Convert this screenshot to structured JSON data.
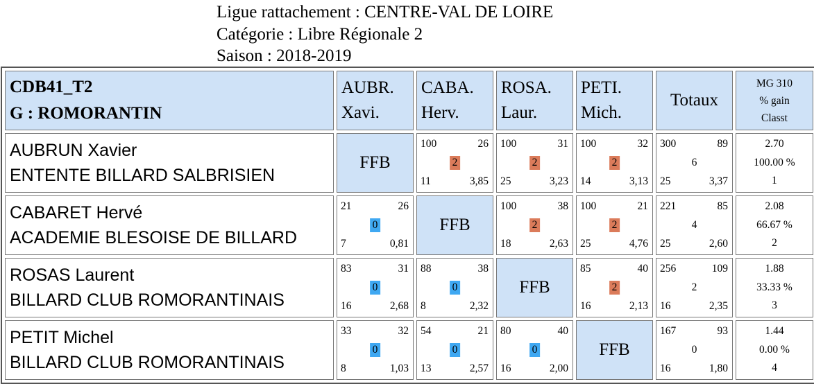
{
  "header": {
    "ligue": "Ligue rattachement : CENTRE-VAL DE LOIRE",
    "categorie": "Catégorie :  Libre Régionale 2",
    "saison": "Saison : 2018-2019"
  },
  "table": {
    "poule_code": "CDB41_T2",
    "poule_group": "G : ROMORANTIN",
    "columns": [
      {
        "line1": "AUBR.",
        "line2": "Xavi."
      },
      {
        "line1": "CABA.",
        "line2": "Herv."
      },
      {
        "line1": "ROSA.",
        "line2": "Laur."
      },
      {
        "line1": "PETI.",
        "line2": "Mich."
      }
    ],
    "totals_label": "Totaux",
    "mg_label": "MG 310",
    "gain_label": "% gain",
    "classt_label": "Classt",
    "self_label": "FFB",
    "rows": [
      {
        "name": "AUBRUN Xavier",
        "club": "ENTENTE BILLARD SALBRISIEN",
        "matches": [
          null,
          {
            "points": "100",
            "reprises": "26",
            "result": "2",
            "serie": "11",
            "moyenne": "3,85"
          },
          {
            "points": "100",
            "reprises": "31",
            "result": "2",
            "serie": "25",
            "moyenne": "3,23"
          },
          {
            "points": "100",
            "reprises": "32",
            "result": "2",
            "serie": "14",
            "moyenne": "3,13"
          }
        ],
        "totals": {
          "points": "300",
          "reprises": "89",
          "result": "6",
          "serie": "25",
          "moyenne": "3,37"
        },
        "mg": "2.70",
        "gain": "100.00 %",
        "classt": "1"
      },
      {
        "name": "CABARET Hervé",
        "club": "ACADEMIE BLESOISE DE BILLARD",
        "matches": [
          {
            "points": "21",
            "reprises": "26",
            "result": "0",
            "serie": "7",
            "moyenne": "0,81"
          },
          null,
          {
            "points": "100",
            "reprises": "38",
            "result": "2",
            "serie": "18",
            "moyenne": "2,63"
          },
          {
            "points": "100",
            "reprises": "21",
            "result": "2",
            "serie": "25",
            "moyenne": "4,76"
          }
        ],
        "totals": {
          "points": "221",
          "reprises": "85",
          "result": "4",
          "serie": "25",
          "moyenne": "2,60"
        },
        "mg": "2.08",
        "gain": "66.67 %",
        "classt": "2"
      },
      {
        "name": "ROSAS Laurent",
        "club": "BILLARD CLUB ROMORANTINAIS",
        "matches": [
          {
            "points": "83",
            "reprises": "31",
            "result": "0",
            "serie": "16",
            "moyenne": "2,68"
          },
          {
            "points": "88",
            "reprises": "38",
            "result": "0",
            "serie": "8",
            "moyenne": "2,32"
          },
          null,
          {
            "points": "85",
            "reprises": "40",
            "result": "2",
            "serie": "16",
            "moyenne": "2,13"
          }
        ],
        "totals": {
          "points": "256",
          "reprises": "109",
          "result": "2",
          "serie": "16",
          "moyenne": "2,35"
        },
        "mg": "1.88",
        "gain": "33.33 %",
        "classt": "3"
      },
      {
        "name": "PETIT Michel",
        "club": "BILLARD CLUB ROMORANTINAIS",
        "matches": [
          {
            "points": "33",
            "reprises": "32",
            "result": "0",
            "serie": "8",
            "moyenne": "1,03"
          },
          {
            "points": "54",
            "reprises": "21",
            "result": "0",
            "serie": "13",
            "moyenne": "2,57"
          },
          {
            "points": "80",
            "reprises": "40",
            "result": "0",
            "serie": "16",
            "moyenne": "2,00"
          },
          null
        ],
        "totals": {
          "points": "167",
          "reprises": "93",
          "result": "0",
          "serie": "16",
          "moyenne": "1,80"
        },
        "mg": "1.44",
        "gain": "0.00 %",
        "classt": "4"
      }
    ]
  },
  "colors": {
    "win": "#db7b5a",
    "loss": "#3fa8f2",
    "header_bg": "#cfe2f7"
  }
}
